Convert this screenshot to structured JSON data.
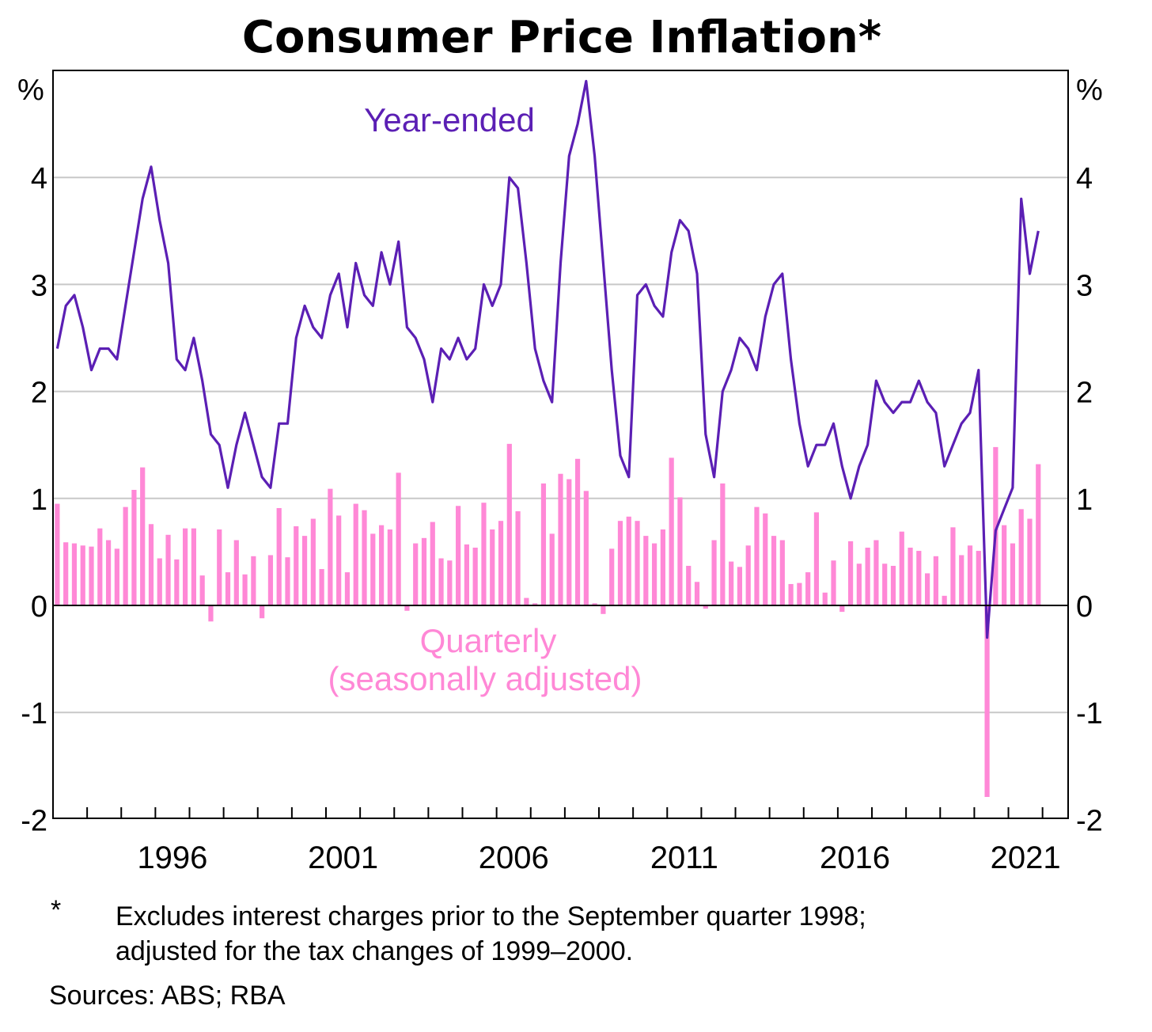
{
  "title": "Consumer Price Inflation*",
  "unit_left": "%",
  "unit_right": "%",
  "footnote_marker": "*",
  "footnote_text_1": "Excludes interest charges prior to the September quarter 1998;",
  "footnote_text_2": "adjusted for the tax changes of 1999–2000.",
  "sources": "Sources: ABS; RBA",
  "colors": {
    "year_ended": "#5b1fb4",
    "quarterly": "#ff88d6",
    "grid": "#c8c8c8"
  },
  "chart_data": {
    "type": "bar",
    "title": "Consumer Price Inflation*",
    "x_range": [
      1993.0,
      2022.75
    ],
    "ylim": [
      -2,
      5
    ],
    "y_ticks": [
      -2,
      -1,
      0,
      1,
      2,
      3,
      4
    ],
    "x_ticks": [
      1996,
      2001,
      2006,
      2011,
      2016,
      2021
    ],
    "grid": true,
    "start_quarter": "1993-Q1",
    "series": [
      {
        "name": "Year-ended",
        "type": "line",
        "values": [
          2.4,
          2.8,
          2.9,
          2.6,
          2.2,
          2.4,
          2.4,
          2.3,
          2.8,
          3.3,
          3.8,
          4.1,
          3.6,
          3.2,
          2.3,
          2.2,
          2.5,
          2.1,
          1.6,
          1.5,
          1.1,
          1.5,
          1.8,
          1.5,
          1.2,
          1.1,
          1.7,
          1.7,
          2.5,
          2.8,
          2.6,
          2.5,
          2.9,
          3.1,
          2.6,
          3.2,
          2.9,
          2.8,
          3.3,
          3.0,
          3.4,
          2.6,
          2.5,
          2.3,
          1.9,
          2.4,
          2.3,
          2.5,
          2.3,
          2.4,
          3.0,
          2.8,
          3.0,
          4.0,
          3.9,
          3.2,
          2.4,
          2.1,
          1.9,
          3.2,
          4.2,
          4.5,
          4.9,
          4.2,
          3.2,
          2.2,
          1.4,
          1.2,
          2.9,
          3.0,
          2.8,
          2.7,
          3.3,
          3.6,
          3.5,
          3.1,
          1.6,
          1.2,
          2.0,
          2.2,
          2.5,
          2.4,
          2.2,
          2.7,
          3.0,
          3.1,
          2.3,
          1.7,
          1.3,
          1.5,
          1.5,
          1.7,
          1.3,
          1.0,
          1.3,
          1.5,
          2.1,
          1.9,
          1.8,
          1.9,
          1.9,
          2.1,
          1.9,
          1.8,
          1.3,
          1.5,
          1.7,
          1.8,
          2.2,
          -0.3,
          0.7,
          0.9,
          1.1,
          3.8,
          3.1,
          3.5
        ]
      },
      {
        "name": "Quarterly (seasonally adjusted)",
        "type": "bar",
        "values": [
          0.95,
          0.59,
          0.58,
          0.56,
          0.55,
          0.72,
          0.61,
          0.53,
          0.92,
          1.08,
          1.29,
          0.76,
          0.44,
          0.66,
          0.43,
          0.72,
          0.72,
          0.28,
          -0.15,
          0.71,
          0.31,
          0.61,
          0.29,
          0.46,
          -0.12,
          0.47,
          0.91,
          0.45,
          0.74,
          0.65,
          0.81,
          0.34,
          1.09,
          0.84,
          0.31,
          0.95,
          0.89,
          0.67,
          0.75,
          0.71,
          1.24,
          -0.05,
          0.58,
          0.63,
          0.78,
          0.44,
          0.42,
          0.93,
          0.57,
          0.54,
          0.96,
          0.71,
          0.79,
          1.51,
          0.88,
          0.07,
          0.02,
          1.14,
          0.67,
          1.23,
          1.18,
          1.37,
          1.07,
          0.02,
          -0.08,
          0.53,
          0.79,
          0.83,
          0.79,
          0.65,
          0.58,
          0.71,
          1.38,
          1.01,
          0.37,
          0.22,
          -0.03,
          0.61,
          1.14,
          0.41,
          0.36,
          0.56,
          0.92,
          0.86,
          0.65,
          0.61,
          0.2,
          0.21,
          0.31,
          0.87,
          0.12,
          0.42,
          -0.06,
          0.6,
          0.39,
          0.54,
          0.61,
          0.39,
          0.37,
          0.69,
          0.54,
          0.51,
          0.3,
          0.46,
          0.09,
          0.73,
          0.47,
          0.56,
          0.51,
          -1.79,
          1.48,
          0.75,
          0.58,
          0.9,
          0.81,
          1.32
        ]
      }
    ],
    "annotations": [
      "Year-ended",
      "Quarterly",
      "(seasonally adjusted)"
    ]
  }
}
